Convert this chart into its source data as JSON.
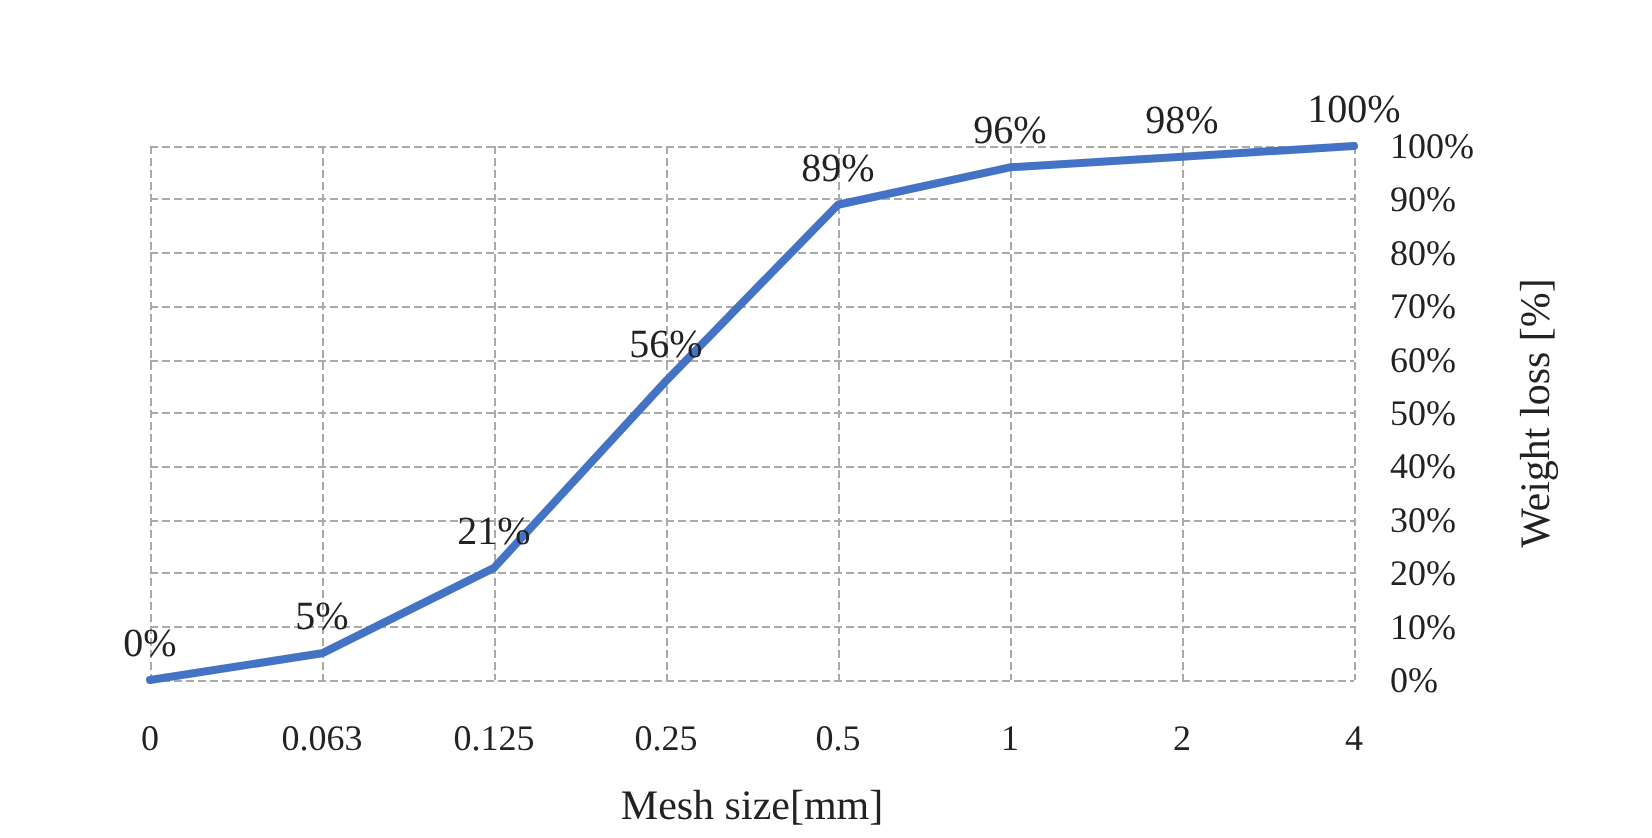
{
  "chart_data": {
    "type": "line",
    "xlabel": "Mesh size[mm]",
    "ylabel": "Weight loss [%]",
    "categories": [
      "0",
      "0.063",
      "0.125",
      "0.25",
      "0.5",
      "1",
      "2",
      "4"
    ],
    "series": [
      {
        "color": "#4472c4",
        "values": [
          0,
          5,
          21,
          56,
          89,
          96,
          98,
          100
        ],
        "value_labels": [
          "0%",
          "5%",
          "21%",
          "56%",
          "89%",
          "96%",
          "98%",
          "100%"
        ]
      }
    ],
    "ylim": [
      0,
      100
    ],
    "yticks": [
      {
        "value": 0,
        "label": "0%"
      },
      {
        "value": 10,
        "label": "10%"
      },
      {
        "value": 20,
        "label": "20%"
      },
      {
        "value": 30,
        "label": "30%"
      },
      {
        "value": 40,
        "label": "40%"
      },
      {
        "value": 50,
        "label": "50%"
      },
      {
        "value": 60,
        "label": "60%"
      },
      {
        "value": 70,
        "label": "70%"
      },
      {
        "value": 80,
        "label": "80%"
      },
      {
        "value": 90,
        "label": "90%"
      },
      {
        "value": 100,
        "label": "100%"
      }
    ],
    "grid": true,
    "marker": "none",
    "line_style": "solid"
  }
}
